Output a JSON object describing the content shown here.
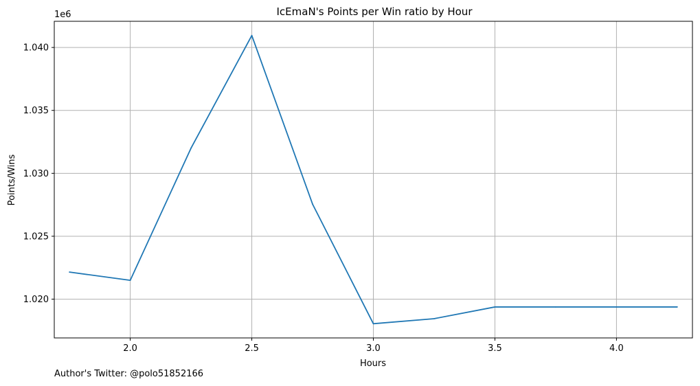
{
  "colors": {
    "line": "#1f77b4",
    "grid": "#b0b0b0",
    "axis": "#000000",
    "background": "#ffffff"
  },
  "footer": {
    "author_note": "Author's Twitter: @polo51852166"
  },
  "chart_data": {
    "type": "line",
    "title": "IcEmaN's Points per Win ratio by Hour",
    "xlabel": "Hours",
    "ylabel": "Points/Wins",
    "y_offset_label": "1e6",
    "grid": true,
    "xlim": [
      1.6875,
      4.3125
    ],
    "ylim": [
      1.01692,
      1.04208
    ],
    "x_ticks": [
      2.0,
      2.5,
      3.0,
      3.5,
      4.0
    ],
    "x_tick_labels": [
      "2.0",
      "2.5",
      "3.0",
      "3.5",
      "4.0"
    ],
    "y_ticks": [
      1.02,
      1.025,
      1.03,
      1.035,
      1.04
    ],
    "y_tick_labels": [
      "1.020",
      "1.025",
      "1.030",
      "1.035",
      "1.040"
    ],
    "series": [
      {
        "name": "Points per Win",
        "x": [
          1.75,
          2.0,
          2.25,
          2.5,
          2.75,
          3.0,
          3.25,
          3.5,
          3.75,
          4.0,
          4.25
        ],
        "values": [
          1.02215,
          1.0215,
          1.032,
          1.04095,
          1.02755,
          1.01805,
          1.01845,
          1.01938,
          1.01938,
          1.01938,
          1.01938
        ]
      }
    ]
  }
}
